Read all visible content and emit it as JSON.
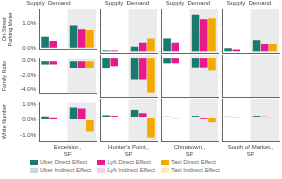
{
  "chart_data": [
    {
      "type": "bar",
      "title": "Supply  Demand",
      "y_label": "On-Street\nParking Meter",
      "categories": [
        null,
        null
      ],
      "series": [
        {
          "name": "Uber Direct Effect",
          "color": "#1a7a6e",
          "values": [
            0.45,
            0.9
          ]
        },
        {
          "name": "Lyft Direct Effect",
          "color": "#e8198b",
          "values": [
            0.28,
            0.75
          ]
        },
        {
          "name": "Taxi Direct Effect",
          "color": "#f5a800",
          "values": [
            0.0,
            0.72
          ]
        },
        {
          "name": "Uber Indirect Effect",
          "color": "#c5d9d7",
          "values": [
            0.45,
            0.9
          ]
        },
        {
          "name": "Lyft Indirect Effect",
          "color": "#f8d0e6",
          "values": [
            0.15,
            0.38
          ]
        },
        {
          "name": "Taxi Indirect Effect",
          "color": "#fce9b5",
          "values": [
            0.0,
            0.38
          ]
        }
      ],
      "ylim": [
        -0.05,
        1.55
      ],
      "yticks": [
        {
          "value": 0.0,
          "label": "0.0%"
        },
        {
          "value": 1.0,
          "label": "1.0%"
        }
      ],
      "grid": false,
      "stacked": false,
      "tick_labels": "y"
    },
    {
      "type": "bar",
      "title": "Supply  Demand",
      "categories": [
        null,
        null
      ],
      "series": [
        {
          "name": "Uber Direct Effect",
          "color": "#1a7a6e",
          "values": [
            0.04,
            0.18
          ]
        },
        {
          "name": "Lyft Direct Effect",
          "color": "#e8198b",
          "values": [
            0.04,
            0.32
          ]
        },
        {
          "name": "Taxi Direct Effect",
          "color": "#f5a800",
          "values": [
            0.0,
            0.48
          ]
        },
        {
          "name": "Uber Indirect Effect",
          "color": "#c5d9d7",
          "values": [
            0.04,
            0.04
          ]
        },
        {
          "name": "Lyft Indirect Effect",
          "color": "#f8d0e6",
          "values": [
            0.04,
            0.08
          ]
        },
        {
          "name": "Taxi Indirect Effect",
          "color": "#fce9b5",
          "values": [
            0.0,
            0.14
          ]
        }
      ],
      "ylim": [
        -0.05,
        1.55
      ],
      "yticks": [
        {
          "value": 0.0,
          "label": "0.0%"
        },
        {
          "value": 1.0,
          "label": "1.0%"
        }
      ],
      "grid": false,
      "stacked": false,
      "tick_labels": false
    },
    {
      "type": "bar",
      "title": "Supply  Demand",
      "categories": [
        null,
        null
      ],
      "series": [
        {
          "name": "Uber Direct Effect",
          "color": "#1a7a6e",
          "values": [
            0.48,
            1.35
          ]
        },
        {
          "name": "Lyft Direct Effect",
          "color": "#e8198b",
          "values": [
            0.32,
            1.18
          ]
        },
        {
          "name": "Taxi Direct Effect",
          "color": "#f5a800",
          "values": [
            0.0,
            1.22
          ]
        },
        {
          "name": "Uber Indirect Effect",
          "color": "#c5d9d7",
          "values": [
            0.48,
            0.68
          ]
        },
        {
          "name": "Lyft Indirect Effect",
          "color": "#f8d0e6",
          "values": [
            0.14,
            0.48
          ]
        },
        {
          "name": "Taxi Indirect Effect",
          "color": "#fce9b5",
          "values": [
            0.0,
            0.48
          ]
        }
      ],
      "ylim": [
        -0.05,
        1.55
      ],
      "yticks": [
        {
          "value": 0.0,
          "label": "0.0%"
        },
        {
          "value": 1.0,
          "label": "1.0%"
        }
      ],
      "grid": false,
      "stacked": false,
      "tick_labels": false
    },
    {
      "type": "bar",
      "title": "Supply  Demand",
      "categories": [
        null,
        null
      ],
      "series": [
        {
          "name": "Uber Direct Effect",
          "color": "#1a7a6e",
          "values": [
            0.12,
            0.42
          ]
        },
        {
          "name": "Lyft Direct Effect",
          "color": "#e8198b",
          "values": [
            0.08,
            0.28
          ]
        },
        {
          "name": "Taxi Direct Effect",
          "color": "#f5a800",
          "values": [
            0.0,
            0.28
          ]
        },
        {
          "name": "Uber Indirect Effect",
          "color": "#c5d9d7",
          "values": [
            0.08,
            0.18
          ]
        },
        {
          "name": "Lyft Indirect Effect",
          "color": "#f8d0e6",
          "values": [
            0.04,
            0.08
          ]
        },
        {
          "name": "Taxi Indirect Effect",
          "color": "#fce9b5",
          "values": [
            0.0,
            0.08
          ]
        }
      ],
      "ylim": [
        -0.05,
        1.55
      ],
      "yticks": [
        {
          "value": 0.0,
          "label": "0.0%"
        },
        {
          "value": 1.0,
          "label": "1.0%"
        }
      ],
      "grid": false,
      "stacked": false,
      "tick_labels": false
    },
    {
      "type": "bar",
      "y_label": "Family Ratio",
      "categories": [
        null,
        null
      ],
      "series": [
        {
          "name": "Uber Direct Effect",
          "color": "#1a7a6e",
          "values": [
            -0.5,
            -1.0
          ]
        },
        {
          "name": "Lyft Direct Effect",
          "color": "#e8198b",
          "values": [
            -0.5,
            -1.0
          ]
        },
        {
          "name": "Taxi Direct Effect",
          "color": "#f5a800",
          "values": [
            0.0,
            -1.0
          ]
        },
        {
          "name": "Uber Indirect Effect",
          "color": "#c5d9d7",
          "values": [
            -0.5,
            -1.0
          ]
        },
        {
          "name": "Lyft Indirect Effect",
          "color": "#f8d0e6",
          "values": [
            -0.2,
            -0.65
          ]
        },
        {
          "name": "Taxi Indirect Effect",
          "color": "#fce9b5",
          "values": [
            0.0,
            -0.65
          ]
        }
      ],
      "ylim": [
        -4.5,
        0.3
      ],
      "yticks": [
        {
          "value": -4.0,
          "label": "-4.0%"
        },
        {
          "value": -2.0,
          "label": "-2.0%"
        },
        {
          "value": 0.0,
          "label": "0.0%"
        }
      ],
      "grid": false,
      "stacked": false,
      "tick_labels": "y"
    },
    {
      "type": "bar",
      "categories": [
        null,
        null
      ],
      "series": [
        {
          "name": "Uber Direct Effect",
          "color": "#1a7a6e",
          "values": [
            -1.2,
            -2.5
          ]
        },
        {
          "name": "Lyft Direct Effect",
          "color": "#e8198b",
          "values": [
            -1.0,
            -2.5
          ]
        },
        {
          "name": "Taxi Direct Effect",
          "color": "#f5a800",
          "values": [
            0.0,
            -4.0
          ]
        },
        {
          "name": "Uber Indirect Effect",
          "color": "#c5d9d7",
          "values": [
            -1.2,
            -1.5
          ]
        },
        {
          "name": "Lyft Indirect Effect",
          "color": "#f8d0e6",
          "values": [
            -0.5,
            -1.5
          ]
        },
        {
          "name": "Taxi Indirect Effect",
          "color": "#fce9b5",
          "values": [
            0.0,
            -2.2
          ]
        }
      ],
      "ylim": [
        -4.5,
        0.3
      ],
      "yticks": [
        {
          "value": -4.0,
          "label": "-4.0%"
        },
        {
          "value": -2.0,
          "label": "-2.0%"
        },
        {
          "value": 0.0,
          "label": "0.0%"
        }
      ],
      "grid": false,
      "stacked": false,
      "tick_labels": false
    },
    {
      "type": "bar",
      "categories": [
        null,
        null
      ],
      "series": [
        {
          "name": "Uber Direct Effect",
          "color": "#1a7a6e",
          "values": [
            -0.65,
            -1.15
          ]
        },
        {
          "name": "Lyft Direct Effect",
          "color": "#e8198b",
          "values": [
            -0.65,
            -1.15
          ]
        },
        {
          "name": "Taxi Direct Effect",
          "color": "#f5a800",
          "values": [
            0.0,
            -1.45
          ]
        },
        {
          "name": "Uber Indirect Effect",
          "color": "#c5d9d7",
          "values": [
            -0.65,
            -0.75
          ]
        },
        {
          "name": "Lyft Indirect Effect",
          "color": "#f8d0e6",
          "values": [
            -0.28,
            -0.65
          ]
        },
        {
          "name": "Taxi Indirect Effect",
          "color": "#fce9b5",
          "values": [
            0.0,
            -0.75
          ]
        }
      ],
      "ylim": [
        -4.5,
        0.3
      ],
      "yticks": [
        {
          "value": -4.0,
          "label": "-4.0%"
        },
        {
          "value": -2.0,
          "label": "-2.0%"
        },
        {
          "value": 0.0,
          "label": "0.0%"
        }
      ],
      "grid": false,
      "stacked": false,
      "tick_labels": false
    },
    {
      "type": "bar",
      "categories": [
        null,
        null
      ],
      "series": [
        {
          "name": "Uber Direct Effect",
          "color": "#1a7a6e",
          "values": [
            0.0,
            0.0
          ]
        },
        {
          "name": "Lyft Direct Effect",
          "color": "#e8198b",
          "values": [
            0.0,
            0.0
          ]
        },
        {
          "name": "Taxi Direct Effect",
          "color": "#f5a800",
          "values": [
            0.0,
            0.0
          ]
        },
        {
          "name": "Uber Indirect Effect",
          "color": "#c5d9d7",
          "values": [
            0.0,
            0.0
          ]
        },
        {
          "name": "Lyft Indirect Effect",
          "color": "#f8d0e6",
          "values": [
            0.0,
            0.0
          ]
        },
        {
          "name": "Taxi Indirect Effect",
          "color": "#fce9b5",
          "values": [
            0.0,
            0.0
          ]
        }
      ],
      "ylim": [
        -4.5,
        0.3
      ],
      "yticks": [
        {
          "value": -4.0,
          "label": "-4.0%"
        },
        {
          "value": -2.0,
          "label": "-2.0%"
        },
        {
          "value": 0.0,
          "label": "0.0%"
        }
      ],
      "grid": false,
      "stacked": false,
      "tick_labels": false
    },
    {
      "type": "bar",
      "y_label": "White Number",
      "x_label": "Excelsior,,\nSF",
      "categories": [
        null,
        null
      ],
      "legend": "lower left",
      "series": [
        {
          "name": "Uber Direct Effect",
          "color": "#1a7a6e",
          "values": [
            0.18,
            0.78
          ]
        },
        {
          "name": "Lyft Direct Effect",
          "color": "#e8198b",
          "values": [
            0.12,
            0.72
          ]
        },
        {
          "name": "Taxi Direct Effect",
          "color": "#f5a800",
          "values": [
            0.0,
            -0.78
          ]
        },
        {
          "name": "Uber Indirect Effect",
          "color": "#c5d9d7",
          "values": [
            0.12,
            0.38
          ]
        },
        {
          "name": "Lyft Indirect Effect",
          "color": "#f8d0e6",
          "values": [
            0.04,
            0.28
          ]
        },
        {
          "name": "Taxi Indirect Effect",
          "color": "#fce9b5",
          "values": [
            0.0,
            -0.38
          ]
        }
      ],
      "ylim": [
        -1.4,
        1.1
      ],
      "yticks": [
        {
          "value": -1.0,
          "label": "-1.0%"
        },
        {
          "value": 0.0,
          "label": "0.0%"
        },
        {
          "value": 1.0,
          "label": "1.0%"
        }
      ],
      "grid": false,
      "stacked": false,
      "tick_labels": "y"
    },
    {
      "type": "bar",
      "x_label": "Hunter's Point,,\nSF",
      "categories": [
        null,
        null
      ],
      "series": [
        {
          "name": "Uber Direct Effect",
          "color": "#1a7a6e",
          "values": [
            0.12,
            0.45
          ]
        },
        {
          "name": "Lyft Direct Effect",
          "color": "#e8198b",
          "values": [
            0.08,
            0.25
          ]
        },
        {
          "name": "Taxi Direct Effect",
          "color": "#f5a800",
          "values": [
            0.0,
            -1.2
          ]
        },
        {
          "name": "Uber Indirect Effect",
          "color": "#c5d9d7",
          "values": [
            0.08,
            0.22
          ]
        },
        {
          "name": "Lyft Indirect Effect",
          "color": "#f8d0e6",
          "values": [
            0.04,
            0.08
          ]
        },
        {
          "name": "Taxi Indirect Effect",
          "color": "#fce9b5",
          "values": [
            0.0,
            -0.6
          ]
        }
      ],
      "ylim": [
        -1.4,
        1.1
      ],
      "yticks": [
        {
          "value": -1.0,
          "label": "-1.0%"
        },
        {
          "value": 0.0,
          "label": "0.0%"
        },
        {
          "value": 1.0,
          "label": "1.0%"
        }
      ],
      "grid": false,
      "stacked": false,
      "tick_labels": false
    },
    {
      "type": "bar",
      "x_label": "Chinatown,,\nSF",
      "categories": [
        null,
        null
      ],
      "series": [
        {
          "name": "Uber Direct Effect",
          "color": "#1a7a6e",
          "values": [
            0.04,
            0.08
          ]
        },
        {
          "name": "Lyft Direct Effect",
          "color": "#e8198b",
          "values": [
            -0.04,
            -0.08
          ]
        },
        {
          "name": "Taxi Direct Effect",
          "color": "#f5a800",
          "values": [
            0.0,
            -0.28
          ]
        },
        {
          "name": "Uber Indirect Effect",
          "color": "#c5d9d7",
          "values": [
            0.0,
            0.04
          ]
        },
        {
          "name": "Lyft Indirect Effect",
          "color": "#f8d0e6",
          "values": [
            -0.02,
            -0.04
          ]
        },
        {
          "name": "Taxi Indirect Effect",
          "color": "#fce9b5",
          "values": [
            0.0,
            -0.14
          ]
        }
      ],
      "ylim": [
        -1.4,
        1.1
      ],
      "yticks": [
        {
          "value": -1.0,
          "label": "-1.0%"
        },
        {
          "value": 0.0,
          "label": "0.0%"
        },
        {
          "value": 1.0,
          "label": "1.0%"
        }
      ],
      "grid": false,
      "stacked": false,
      "tick_labels": false
    },
    {
      "type": "bar",
      "x_label": "South of Market,,\nSF",
      "categories": [
        null,
        null
      ],
      "series": [
        {
          "name": "Uber Direct Effect",
          "color": "#1a7a6e",
          "values": [
            0.04,
            0.08
          ]
        },
        {
          "name": "Lyft Direct Effect",
          "color": "#e8198b",
          "values": [
            0.02,
            0.04
          ]
        },
        {
          "name": "Taxi Direct Effect",
          "color": "#f5a800",
          "values": [
            0.0,
            -0.04
          ]
        },
        {
          "name": "Uber Indirect Effect",
          "color": "#c5d9d7",
          "values": [
            0.02,
            0.04
          ]
        },
        {
          "name": "Lyft Indirect Effect",
          "color": "#f8d0e6",
          "values": [
            0.01,
            0.02
          ]
        },
        {
          "name": "Taxi Indirect Effect",
          "color": "#fce9b5",
          "values": [
            0.0,
            -0.02
          ]
        }
      ],
      "ylim": [
        -1.4,
        1.1
      ],
      "yticks": [
        {
          "value": -1.0,
          "label": "-1.0%"
        },
        {
          "value": 0.0,
          "label": "0.0%"
        },
        {
          "value": 1.0,
          "label": "1.0%"
        }
      ],
      "grid": false,
      "stacked": false,
      "tick_labels": false
    }
  ]
}
